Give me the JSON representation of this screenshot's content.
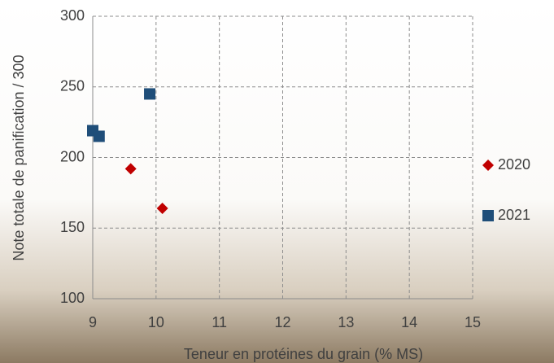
{
  "chart_data": {
    "type": "scatter",
    "x_label": "Teneur en protéines du grain (% MS)",
    "y_label": "Note totale de panification / 300",
    "xlim": [
      9,
      15
    ],
    "xticks": [
      9,
      10,
      11,
      12,
      13,
      14,
      15
    ],
    "ylim": [
      100,
      300
    ],
    "yticks": [
      100,
      150,
      200,
      250,
      300
    ],
    "grid": true,
    "legend": "right",
    "series": [
      {
        "name": "2020",
        "color": "#c00000",
        "marker": "diamond",
        "x": [
          9.6,
          10.1
        ],
        "values": [
          192,
          164
        ]
      },
      {
        "name": "2021",
        "color": "#1f4e79",
        "marker": "square",
        "x": [
          9.0,
          9.1,
          9.9
        ],
        "values": [
          219,
          215,
          245
        ]
      }
    ]
  }
}
